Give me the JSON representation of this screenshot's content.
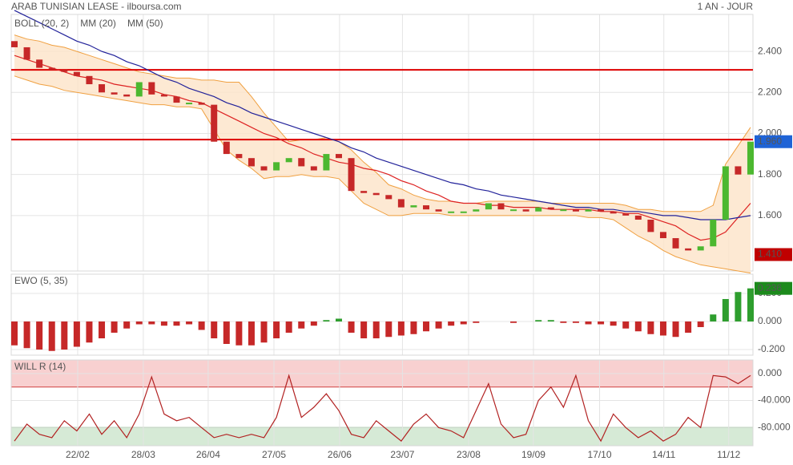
{
  "header": {
    "title": "ARAB TUNISIAN LEASE - ilboursa.com",
    "period": "1 AN - JOUR"
  },
  "chart_data": [
    {
      "type": "candlestick",
      "xlim": [
        0,
        59
      ],
      "xticks": [
        {
          "value": 5.07,
          "label": "22/02"
        },
        {
          "value": 10.33,
          "label": "28/03"
        },
        {
          "value": 15.53,
          "label": "26/04"
        },
        {
          "value": 20.8,
          "label": "27/05"
        },
        {
          "value": 26.06,
          "label": "26/06"
        },
        {
          "value": 31.1,
          "label": "23/07"
        },
        {
          "value": 36.4,
          "label": "23/08"
        },
        {
          "value": 41.6,
          "label": "19/09"
        },
        {
          "value": 46.9,
          "label": "17/10"
        },
        {
          "value": 52.05,
          "label": "14/11"
        },
        {
          "value": 57.25,
          "label": "11/12"
        }
      ],
      "ylim": [
        1.33,
        2.58
      ],
      "yticks": [
        {
          "value": 1.6,
          "label": "1.600"
        },
        {
          "value": 1.8,
          "label": "1.800"
        },
        {
          "value": 2.0,
          "label": "2.000"
        },
        {
          "value": 2.2,
          "label": "2.200"
        },
        {
          "value": 2.4,
          "label": "2.400"
        }
      ],
      "grid": true,
      "up_color": "#4cb830",
      "down_color": "#c62828",
      "open": [
        2.45,
        2.42,
        2.36,
        2.32,
        2.31,
        2.3,
        2.28,
        2.24,
        2.2,
        2.19,
        2.18,
        2.25,
        2.19,
        2.18,
        2.15,
        2.15,
        2.14,
        1.96,
        1.9,
        1.88,
        1.84,
        1.82,
        1.86,
        1.88,
        1.84,
        1.82,
        1.9,
        1.88,
        1.72,
        1.71,
        1.7,
        1.68,
        1.64,
        1.65,
        1.63,
        1.62,
        1.62,
        1.62,
        1.63,
        1.66,
        1.63,
        1.63,
        1.62,
        1.64,
        1.63,
        1.63,
        1.62,
        1.63,
        1.62,
        1.61,
        1.6,
        1.58,
        1.52,
        1.49,
        1.44,
        1.43,
        1.45,
        1.58,
        1.84,
        1.8
      ],
      "close": [
        2.42,
        2.36,
        2.32,
        2.31,
        2.3,
        2.28,
        2.24,
        2.2,
        2.19,
        2.18,
        2.25,
        2.19,
        2.18,
        2.15,
        2.15,
        2.14,
        1.96,
        1.9,
        1.88,
        1.84,
        1.82,
        1.86,
        1.88,
        1.84,
        1.82,
        1.9,
        1.88,
        1.72,
        1.71,
        1.7,
        1.68,
        1.64,
        1.65,
        1.63,
        1.62,
        1.62,
        1.62,
        1.63,
        1.66,
        1.63,
        1.63,
        1.62,
        1.64,
        1.63,
        1.63,
        1.62,
        1.63,
        1.62,
        1.61,
        1.6,
        1.58,
        1.52,
        1.49,
        1.44,
        1.43,
        1.45,
        1.58,
        1.84,
        1.8,
        1.96
      ],
      "bands": {
        "name": "BOLL (20, 2)",
        "color": "#f0a040",
        "fill": "#fde3c8",
        "upper": [
          2.48,
          2.46,
          2.45,
          2.43,
          2.42,
          2.4,
          2.38,
          2.36,
          2.34,
          2.32,
          2.3,
          2.29,
          2.28,
          2.27,
          2.27,
          2.26,
          2.26,
          2.25,
          2.25,
          2.18,
          2.1,
          2.03,
          1.96,
          1.97,
          1.97,
          1.98,
          1.96,
          1.92,
          1.86,
          1.81,
          1.75,
          1.73,
          1.7,
          1.68,
          1.67,
          1.67,
          1.66,
          1.66,
          1.67,
          1.67,
          1.67,
          1.67,
          1.67,
          1.66,
          1.66,
          1.66,
          1.66,
          1.66,
          1.66,
          1.65,
          1.63,
          1.63,
          1.62,
          1.62,
          1.62,
          1.62,
          1.65,
          1.85,
          1.94,
          2.03
        ],
        "lower": [
          2.28,
          2.26,
          2.24,
          2.23,
          2.21,
          2.2,
          2.19,
          2.18,
          2.17,
          2.16,
          2.15,
          2.14,
          2.14,
          2.13,
          2.13,
          2.12,
          2.02,
          1.92,
          1.87,
          1.83,
          1.78,
          1.79,
          1.79,
          1.8,
          1.79,
          1.79,
          1.78,
          1.72,
          1.66,
          1.63,
          1.6,
          1.6,
          1.61,
          1.61,
          1.61,
          1.6,
          1.6,
          1.6,
          1.6,
          1.6,
          1.6,
          1.6,
          1.6,
          1.6,
          1.6,
          1.6,
          1.59,
          1.59,
          1.58,
          1.54,
          1.5,
          1.47,
          1.43,
          1.4,
          1.38,
          1.36,
          1.35,
          1.34,
          1.33,
          1.32
        ]
      },
      "series": [
        {
          "name": "MM (20)",
          "color": "#dd2222",
          "values": [
            2.38,
            2.36,
            2.34,
            2.32,
            2.3,
            2.28,
            2.27,
            2.26,
            2.24,
            2.23,
            2.22,
            2.21,
            2.19,
            2.18,
            2.16,
            2.15,
            2.12,
            2.09,
            2.06,
            2.03,
            2.0,
            1.98,
            1.95,
            1.93,
            1.9,
            1.88,
            1.86,
            1.85,
            1.83,
            1.82,
            1.8,
            1.77,
            1.75,
            1.72,
            1.7,
            1.67,
            1.66,
            1.66,
            1.65,
            1.65,
            1.64,
            1.64,
            1.64,
            1.63,
            1.63,
            1.63,
            1.63,
            1.62,
            1.62,
            1.61,
            1.61,
            1.59,
            1.57,
            1.55,
            1.51,
            1.48,
            1.49,
            1.52,
            1.59,
            1.66
          ]
        },
        {
          "name": "MM (50)",
          "color": "#22229a",
          "values": [
            2.6,
            2.57,
            2.54,
            2.51,
            2.48,
            2.45,
            2.43,
            2.4,
            2.38,
            2.35,
            2.33,
            2.3,
            2.27,
            2.25,
            2.22,
            2.2,
            2.18,
            2.15,
            2.13,
            2.1,
            2.08,
            2.06,
            2.04,
            2.02,
            2.0,
            1.98,
            1.96,
            1.93,
            1.91,
            1.88,
            1.86,
            1.84,
            1.82,
            1.8,
            1.78,
            1.76,
            1.75,
            1.73,
            1.72,
            1.7,
            1.69,
            1.68,
            1.67,
            1.66,
            1.65,
            1.64,
            1.64,
            1.63,
            1.63,
            1.62,
            1.62,
            1.61,
            1.6,
            1.6,
            1.59,
            1.58,
            1.58,
            1.58,
            1.59,
            1.6
          ]
        }
      ],
      "hlines": [
        {
          "value": 2.31,
          "color": "#dd0000"
        },
        {
          "value": 1.97,
          "color": "#dd0000"
        }
      ],
      "price_labels": [
        {
          "value": 1.96,
          "label": "1.960",
          "color": "#1f63d6"
        },
        {
          "value": 1.41,
          "label": "1.410",
          "color": "#c00000"
        }
      ]
    },
    {
      "type": "bar",
      "title": "EWO (5, 35)",
      "title_color": "#2e8b2e",
      "ylim": [
        -0.24,
        0.337
      ],
      "yticks": [
        {
          "value": -0.2,
          "label": "-0.200"
        },
        {
          "value": 0,
          "label": "0.000"
        },
        {
          "value": 0.2,
          "label": "0.200"
        }
      ],
      "up_color": "#2e9e2e",
      "down_color": "#c62828",
      "values": [
        -0.17,
        -0.19,
        -0.2,
        -0.21,
        -0.2,
        -0.18,
        -0.15,
        -0.12,
        -0.08,
        -0.05,
        -0.02,
        -0.02,
        -0.03,
        -0.03,
        -0.02,
        -0.06,
        -0.12,
        -0.16,
        -0.17,
        -0.17,
        -0.15,
        -0.12,
        -0.08,
        -0.05,
        -0.03,
        0.01,
        0.02,
        -0.08,
        -0.12,
        -0.12,
        -0.11,
        -0.1,
        -0.09,
        -0.07,
        -0.05,
        -0.03,
        -0.02,
        -0.01,
        0,
        0,
        -0.01,
        0,
        0.01,
        0.01,
        -0.01,
        -0.01,
        -0.02,
        -0.02,
        -0.03,
        -0.05,
        -0.07,
        -0.09,
        -0.1,
        -0.11,
        -0.08,
        -0.04,
        0.05,
        0.16,
        0.21,
        0.236
      ],
      "last_label": {
        "value": 0.236,
        "label": "0.236",
        "color": "#1c8a1c"
      }
    },
    {
      "type": "line",
      "title": "WILL R (14)",
      "title_color": "#b22222",
      "ylim": [
        -107,
        20
      ],
      "yticks": [
        {
          "value": -80,
          "label": "-80.000"
        },
        {
          "value": -40,
          "label": "-40.000"
        },
        {
          "value": 0,
          "label": "0.000"
        }
      ],
      "color": "#b22222",
      "overbought": {
        "value": -20,
        "color": "#f8d0d0",
        "line": "#d04040"
      },
      "oversold": {
        "value": -80,
        "color": "#d6ead6",
        "line": "#2e8b2e"
      },
      "values": [
        -100,
        -75,
        -90,
        -95,
        -70,
        -85,
        -60,
        -90,
        -70,
        -95,
        -60,
        -5,
        -60,
        -70,
        -65,
        -80,
        -95,
        -90,
        -95,
        -90,
        -95,
        -65,
        -3,
        -65,
        -50,
        -30,
        -55,
        -90,
        -95,
        -70,
        -85,
        -100,
        -75,
        -60,
        -80,
        -85,
        -95,
        -55,
        -15,
        -75,
        -95,
        -90,
        -40,
        -20,
        -50,
        -3,
        -70,
        -100,
        -60,
        -80,
        -95,
        -85,
        -100,
        -90,
        -65,
        -80,
        -3,
        -5,
        -15,
        -3
      ]
    }
  ]
}
